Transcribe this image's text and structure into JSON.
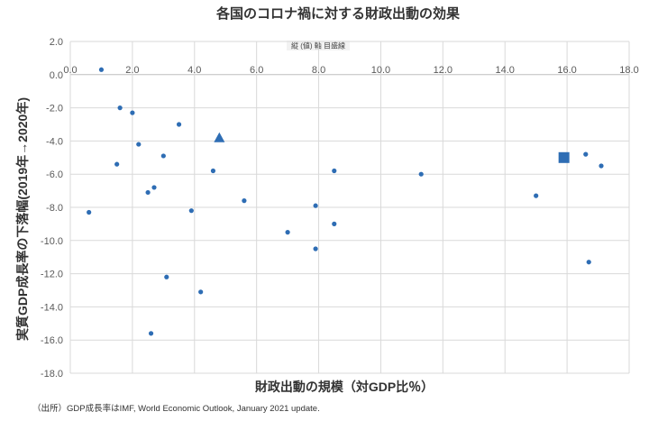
{
  "chart_data": {
    "type": "scatter",
    "title": "各国のコロナ禍に対する財政出動の効果",
    "xlabel": "財政出動の規模（対GDP比％）",
    "ylabel": "実質GDP成長率の下落幅(2019年→2020年)",
    "axis_hint": "縦 (値) 軸 目盛線",
    "xlim": [
      0,
      18
    ],
    "ylim": [
      -18,
      2
    ],
    "x_ticks": [
      0,
      2,
      4,
      6,
      8,
      10,
      12,
      14,
      16,
      18
    ],
    "y_ticks": [
      2,
      0,
      -2,
      -4,
      -6,
      -8,
      -10,
      -12,
      -14,
      -16,
      -18
    ],
    "x_tick_labels": [
      "0.0",
      "2.0",
      "4.0",
      "6.0",
      "8.0",
      "10.0",
      "12.0",
      "14.0",
      "16.0",
      "18.0"
    ],
    "y_tick_labels": [
      "2.0",
      "0.0",
      "-2.0",
      "-4.0",
      "-6.0",
      "-8.0",
      "-10.0",
      "-12.0",
      "-14.0",
      "-16.0",
      "-18.0"
    ],
    "grid": true,
    "point_color": "#2e6db4",
    "series": [
      {
        "name": "countries",
        "marker": "circle",
        "points": [
          {
            "x": 1.0,
            "y": 0.3
          },
          {
            "x": 0.6,
            "y": -8.3
          },
          {
            "x": 1.6,
            "y": -2.0
          },
          {
            "x": 2.0,
            "y": -2.3
          },
          {
            "x": 2.2,
            "y": -4.2
          },
          {
            "x": 1.5,
            "y": -5.4
          },
          {
            "x": 3.5,
            "y": -3.0
          },
          {
            "x": 3.0,
            "y": -4.9
          },
          {
            "x": 2.5,
            "y": -7.1
          },
          {
            "x": 2.7,
            "y": -6.8
          },
          {
            "x": 3.9,
            "y": -8.2
          },
          {
            "x": 4.6,
            "y": -5.8
          },
          {
            "x": 5.6,
            "y": -7.6
          },
          {
            "x": 3.1,
            "y": -12.2
          },
          {
            "x": 4.2,
            "y": -13.1
          },
          {
            "x": 2.6,
            "y": -15.6
          },
          {
            "x": 7.0,
            "y": -9.5
          },
          {
            "x": 7.9,
            "y": -7.9
          },
          {
            "x": 8.5,
            "y": -5.8
          },
          {
            "x": 8.5,
            "y": -9.0
          },
          {
            "x": 7.9,
            "y": -10.5
          },
          {
            "x": 11.3,
            "y": -6.0
          },
          {
            "x": 15.0,
            "y": -7.3
          },
          {
            "x": 16.6,
            "y": -4.8
          },
          {
            "x": 17.1,
            "y": -5.5
          },
          {
            "x": 16.7,
            "y": -11.3
          }
        ]
      },
      {
        "name": "highlight-triangle",
        "marker": "triangle",
        "points": [
          {
            "x": 4.8,
            "y": -3.8
          }
        ]
      },
      {
        "name": "highlight-square",
        "marker": "square",
        "points": [
          {
            "x": 15.9,
            "y": -5.0
          }
        ]
      }
    ]
  },
  "source_note": "（出所）GDP成長率はIMF, World Economic Outlook, January 2021 update."
}
